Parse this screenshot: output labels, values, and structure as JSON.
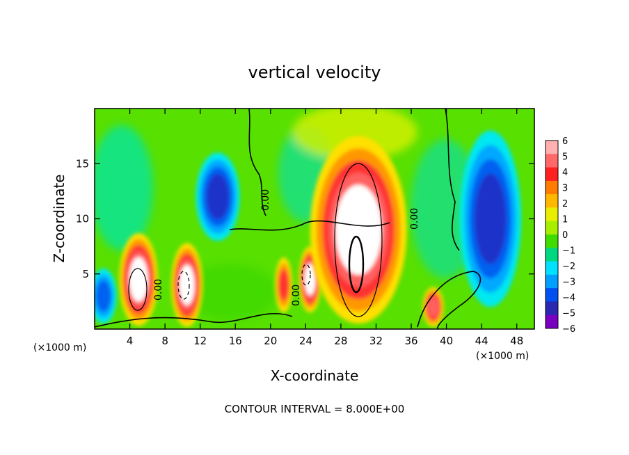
{
  "chart_data": {
    "type": "heatmap",
    "title": "vertical velocity",
    "xlabel": "X-coordinate",
    "ylabel": "Z-coordinate",
    "x_unit": "(×1000 m)",
    "x_unit_right": "(×1000 m)",
    "xlim": [
      0,
      50
    ],
    "ylim": [
      0,
      20
    ],
    "xticks": [
      "4",
      "8",
      "12",
      "16",
      "20",
      "24",
      "28",
      "32",
      "36",
      "40",
      "44",
      "48"
    ],
    "yticks": [
      "5",
      "10",
      "15"
    ],
    "contour_note": "CONTOUR INTERVAL = 8.000E+00",
    "contour_labels": [
      "0.00",
      "0.00",
      "0.00",
      "0.00"
    ],
    "colorbar": {
      "labels": [
        "6",
        "5",
        "4",
        "3",
        "2",
        "1",
        "0",
        "−1",
        "−2",
        "−3",
        "−4",
        "−5",
        "−6"
      ],
      "colors": [
        "#ffb0b0",
        "#ff6868",
        "#ff2020",
        "#ff7c00",
        "#ffb800",
        "#e8ee00",
        "#a8ee00",
        "#40dc00",
        "#00d880",
        "#00e0ff",
        "#00a0ff",
        "#0050f0",
        "#2828b0",
        "#7800c0"
      ]
    },
    "features": [
      {
        "x": 5.0,
        "z": 4.5,
        "value": 6,
        "rx": 2.2,
        "rz": 4.2
      },
      {
        "x": 10.5,
        "z": 4.0,
        "value": 6,
        "rx": 1.8,
        "rz": 3.8
      },
      {
        "x": 14.0,
        "z": 12.0,
        "value": -5,
        "rx": 2.5,
        "rz": 4.0
      },
      {
        "x": 21.5,
        "z": 4.0,
        "value": 4,
        "rx": 1.0,
        "rz": 2.5
      },
      {
        "x": 24.5,
        "z": 4.5,
        "value": 6,
        "rx": 1.3,
        "rz": 3.0
      },
      {
        "x": 30.0,
        "z": 9.0,
        "value": 6,
        "rx": 5.5,
        "rz": 8.5
      },
      {
        "x": 38.5,
        "z": 2.0,
        "value": 5,
        "rx": 1.2,
        "rz": 1.8
      },
      {
        "x": 45.0,
        "z": 10.0,
        "value": -5,
        "rx": 3.5,
        "rz": 8.0
      },
      {
        "x": 1.0,
        "z": 3.0,
        "value": -4,
        "rx": 1.5,
        "rz": 2.5
      }
    ]
  }
}
